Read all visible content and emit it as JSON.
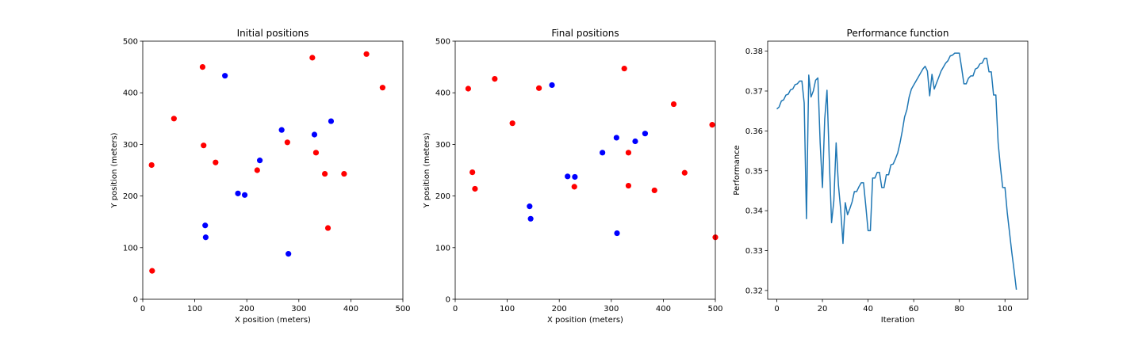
{
  "chart_data": [
    {
      "type": "scatter",
      "title": "Initial positions",
      "xlabel": "X position (meters)",
      "ylabel": "Y position (meters)",
      "xlim": [
        0,
        500
      ],
      "ylim": [
        0,
        500
      ],
      "xticks": [
        0,
        100,
        200,
        300,
        400,
        500
      ],
      "yticks": [
        0,
        100,
        200,
        300,
        400,
        500
      ],
      "grid": false,
      "series": [
        {
          "color": "#ff0000",
          "points": [
            [
              17,
              260
            ],
            [
              18,
              55
            ],
            [
              60,
              350
            ],
            [
              115,
              450
            ],
            [
              117,
              298
            ],
            [
              140,
              265
            ],
            [
              220,
              250
            ],
            [
              278,
              304
            ],
            [
              326,
              468
            ],
            [
              333,
              284
            ],
            [
              350,
              243
            ],
            [
              356,
              138
            ],
            [
              387,
              243
            ],
            [
              430,
              475
            ],
            [
              461,
              410
            ]
          ]
        },
        {
          "color": "#0000ff",
          "points": [
            [
              158,
              433
            ],
            [
              120,
              143
            ],
            [
              121,
              120
            ],
            [
              183,
              205
            ],
            [
              196,
              202
            ],
            [
              225,
              269
            ],
            [
              267,
              328
            ],
            [
              280,
              88
            ],
            [
              330,
              319
            ],
            [
              362,
              345
            ]
          ]
        }
      ]
    },
    {
      "type": "scatter",
      "title": "Final positions",
      "xlabel": "X position (meters)",
      "ylabel": "Y position (meters)",
      "xlim": [
        0,
        500
      ],
      "ylim": [
        0,
        500
      ],
      "xticks": [
        0,
        100,
        200,
        300,
        400,
        500
      ],
      "yticks": [
        0,
        100,
        200,
        300,
        400,
        500
      ],
      "grid": false,
      "series": [
        {
          "color": "#ff0000",
          "points": [
            [
              25,
              408
            ],
            [
              33,
              246
            ],
            [
              38,
              214
            ],
            [
              76,
              427
            ],
            [
              110,
              341
            ],
            [
              161,
              409
            ],
            [
              229,
              218
            ],
            [
              325,
              447
            ],
            [
              333,
              284
            ],
            [
              333,
              220
            ],
            [
              383,
              211
            ],
            [
              420,
              378
            ],
            [
              441,
              245
            ],
            [
              494,
              338
            ],
            [
              500,
              120
            ]
          ]
        },
        {
          "color": "#0000ff",
          "points": [
            [
              143,
              180
            ],
            [
              145,
              156
            ],
            [
              186,
              415
            ],
            [
              216,
              238
            ],
            [
              230,
              237
            ],
            [
              283,
              284
            ],
            [
              310,
              313
            ],
            [
              311,
              128
            ],
            [
              346,
              306
            ],
            [
              365,
              321
            ]
          ]
        }
      ]
    },
    {
      "type": "line",
      "title": "Performance function",
      "xlabel": "Iteration",
      "ylabel": "Performance",
      "xlim": [
        -4,
        110
      ],
      "ylim": [
        0.3178,
        0.3825
      ],
      "xticks": [
        0,
        20,
        40,
        60,
        80,
        100
      ],
      "yticks": [
        0.32,
        0.33,
        0.34,
        0.35,
        0.36,
        0.37,
        0.38
      ],
      "grid": false,
      "series": [
        {
          "color": "#1f77b4",
          "points": [
            [
              0,
              0.3655
            ],
            [
              1,
              0.366
            ],
            [
              2,
              0.3675
            ],
            [
              3,
              0.3678
            ],
            [
              4,
              0.369
            ],
            [
              5,
              0.3692
            ],
            [
              6,
              0.3703
            ],
            [
              7,
              0.3705
            ],
            [
              8,
              0.3716
            ],
            [
              9,
              0.3718
            ],
            [
              10,
              0.3725
            ],
            [
              11,
              0.3725
            ],
            [
              12,
              0.367
            ],
            [
              13,
              0.338
            ],
            [
              14,
              0.374
            ],
            [
              15,
              0.3685
            ],
            [
              16,
              0.37
            ],
            [
              17,
              0.3727
            ],
            [
              18,
              0.3733
            ],
            [
              19,
              0.357
            ],
            [
              20,
              0.3458
            ],
            [
              21,
              0.363
            ],
            [
              22,
              0.3702
            ],
            [
              23,
              0.3528
            ],
            [
              24,
              0.337
            ],
            [
              25,
              0.3425
            ],
            [
              26,
              0.357
            ],
            [
              27,
              0.3465
            ],
            [
              28,
              0.3402
            ],
            [
              29,
              0.3318
            ],
            [
              30,
              0.342
            ],
            [
              31,
              0.339
            ],
            [
              32,
              0.3405
            ],
            [
              33,
              0.3422
            ],
            [
              34,
              0.3448
            ],
            [
              35,
              0.3448
            ],
            [
              36,
              0.346
            ],
            [
              37,
              0.347
            ],
            [
              38,
              0.347
            ],
            [
              39,
              0.3412
            ],
            [
              40,
              0.335
            ],
            [
              41,
              0.335
            ],
            [
              42,
              0.3482
            ],
            [
              43,
              0.3482
            ],
            [
              44,
              0.3496
            ],
            [
              45,
              0.3496
            ],
            [
              46,
              0.3458
            ],
            [
              47,
              0.3458
            ],
            [
              48,
              0.349
            ],
            [
              49,
              0.349
            ],
            [
              50,
              0.3515
            ],
            [
              51,
              0.3517
            ],
            [
              52,
              0.353
            ],
            [
              53,
              0.3545
            ],
            [
              54,
              0.357
            ],
            [
              55,
              0.36
            ],
            [
              56,
              0.3635
            ],
            [
              57,
              0.3653
            ],
            [
              58,
              0.3685
            ],
            [
              59,
              0.3705
            ],
            [
              60,
              0.3715
            ],
            [
              61,
              0.3725
            ],
            [
              62,
              0.3735
            ],
            [
              63,
              0.3745
            ],
            [
              64,
              0.3755
            ],
            [
              65,
              0.3762
            ],
            [
              66,
              0.375
            ],
            [
              67,
              0.3688
            ],
            [
              68,
              0.3742
            ],
            [
              69,
              0.3705
            ],
            [
              70,
              0.372
            ],
            [
              71,
              0.3735
            ],
            [
              72,
              0.375
            ],
            [
              73,
              0.376
            ],
            [
              74,
              0.377
            ],
            [
              75,
              0.3776
            ],
            [
              76,
              0.3788
            ],
            [
              77,
              0.379
            ],
            [
              78,
              0.3795
            ],
            [
              79,
              0.3795
            ],
            [
              80,
              0.3795
            ],
            [
              81,
              0.3758
            ],
            [
              82,
              0.3718
            ],
            [
              83,
              0.3718
            ],
            [
              84,
              0.3732
            ],
            [
              85,
              0.3738
            ],
            [
              86,
              0.3738
            ],
            [
              87,
              0.3755
            ],
            [
              88,
              0.3758
            ],
            [
              89,
              0.3768
            ],
            [
              90,
              0.377
            ],
            [
              91,
              0.3782
            ],
            [
              92,
              0.3782
            ],
            [
              93,
              0.3748
            ],
            [
              94,
              0.3748
            ],
            [
              95,
              0.369
            ],
            [
              96,
              0.369
            ],
            [
              97,
              0.357
            ],
            [
              98,
              0.351
            ],
            [
              99,
              0.3458
            ],
            [
              100,
              0.3458
            ],
            [
              101,
              0.3395
            ],
            [
              102,
              0.3345
            ],
            [
              103,
              0.3295
            ],
            [
              104,
              0.325
            ],
            [
              105,
              0.3202
            ]
          ]
        }
      ]
    }
  ]
}
